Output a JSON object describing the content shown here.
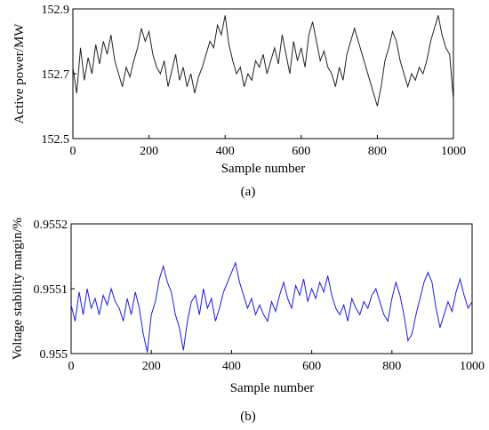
{
  "chart_data": [
    {
      "type": "line",
      "panel": "(a)",
      "title": "",
      "xlabel": "Sample number",
      "ylabel": "Active power/MW",
      "xlim": [
        0,
        1000
      ],
      "ylim": [
        152.5,
        152.9
      ],
      "xticks": [
        "0",
        "200",
        "400",
        "600",
        "800",
        "1000"
      ],
      "yticks": [
        "152.5",
        "152.7",
        "152.9"
      ],
      "grid": false,
      "color": "#222222",
      "x": [
        0,
        10,
        20,
        30,
        40,
        50,
        60,
        70,
        80,
        90,
        100,
        110,
        120,
        130,
        140,
        150,
        160,
        170,
        180,
        190,
        200,
        210,
        220,
        230,
        240,
        250,
        260,
        270,
        280,
        290,
        300,
        310,
        320,
        330,
        340,
        350,
        360,
        370,
        380,
        390,
        400,
        410,
        420,
        430,
        440,
        450,
        460,
        470,
        480,
        490,
        500,
        510,
        520,
        530,
        540,
        550,
        560,
        570,
        580,
        590,
        600,
        610,
        620,
        630,
        640,
        650,
        660,
        670,
        680,
        690,
        700,
        710,
        720,
        730,
        740,
        750,
        760,
        770,
        780,
        790,
        800,
        810,
        820,
        830,
        840,
        850,
        860,
        870,
        880,
        890,
        900,
        910,
        920,
        930,
        940,
        950,
        960,
        970,
        980,
        990,
        1000
      ],
      "y": [
        152.72,
        152.64,
        152.78,
        152.68,
        152.75,
        152.7,
        152.79,
        152.73,
        152.8,
        152.76,
        152.82,
        152.74,
        152.7,
        152.66,
        152.72,
        152.69,
        152.74,
        152.78,
        152.84,
        152.8,
        152.83,
        152.76,
        152.72,
        152.7,
        152.74,
        152.66,
        152.71,
        152.76,
        152.68,
        152.72,
        152.66,
        152.7,
        152.64,
        152.69,
        152.72,
        152.76,
        152.8,
        152.78,
        152.85,
        152.82,
        152.88,
        152.79,
        152.74,
        152.7,
        152.72,
        152.66,
        152.7,
        152.68,
        152.74,
        152.72,
        152.76,
        152.7,
        152.74,
        152.78,
        152.73,
        152.82,
        152.76,
        152.7,
        152.8,
        152.74,
        152.78,
        152.72,
        152.82,
        152.86,
        152.8,
        152.74,
        152.77,
        152.72,
        152.7,
        152.66,
        152.72,
        152.68,
        152.76,
        152.8,
        152.84,
        152.8,
        152.76,
        152.72,
        152.68,
        152.64,
        152.6,
        152.66,
        152.74,
        152.78,
        152.83,
        152.8,
        152.74,
        152.7,
        152.66,
        152.7,
        152.68,
        152.72,
        152.7,
        152.74,
        152.8,
        152.84,
        152.88,
        152.82,
        152.78,
        152.76,
        152.62
      ]
    },
    {
      "type": "line",
      "panel": "(b)",
      "title": "",
      "xlabel": "Sample number",
      "ylabel": "Voltage stability margin/%",
      "xlim": [
        0,
        1000
      ],
      "ylim": [
        0.955,
        0.9552
      ],
      "xticks": [
        "0",
        "200",
        "400",
        "600",
        "800",
        "1000"
      ],
      "yticks": [
        "0.955",
        "0.9551",
        "0.9552"
      ],
      "grid": false,
      "color": "#1a1aee",
      "x": [
        0,
        10,
        20,
        30,
        40,
        50,
        60,
        70,
        80,
        90,
        100,
        110,
        120,
        130,
        140,
        150,
        160,
        170,
        180,
        190,
        200,
        210,
        220,
        230,
        240,
        250,
        260,
        270,
        280,
        290,
        300,
        310,
        320,
        330,
        340,
        350,
        360,
        370,
        380,
        390,
        400,
        410,
        420,
        430,
        440,
        450,
        460,
        470,
        480,
        490,
        500,
        510,
        520,
        530,
        540,
        550,
        560,
        570,
        580,
        590,
        600,
        610,
        620,
        630,
        640,
        650,
        660,
        670,
        680,
        690,
        700,
        710,
        720,
        730,
        740,
        750,
        760,
        770,
        780,
        790,
        800,
        810,
        820,
        830,
        840,
        850,
        860,
        870,
        880,
        890,
        900,
        910,
        920,
        930,
        940,
        950,
        960,
        970,
        980,
        990,
        1000
      ],
      "y": [
        0.955075,
        0.95505,
        0.955095,
        0.95506,
        0.9551,
        0.95507,
        0.955085,
        0.95506,
        0.95509,
        0.955075,
        0.9551,
        0.95508,
        0.95507,
        0.95505,
        0.955085,
        0.95506,
        0.955095,
        0.95507,
        0.95503,
        0.955002,
        0.95506,
        0.95508,
        0.955115,
        0.955135,
        0.95511,
        0.955095,
        0.95506,
        0.95504,
        0.955005,
        0.95505,
        0.95508,
        0.95509,
        0.95506,
        0.9551,
        0.95507,
        0.955085,
        0.95505,
        0.95507,
        0.955095,
        0.95511,
        0.955125,
        0.95514,
        0.95511,
        0.95509,
        0.95507,
        0.955085,
        0.95506,
        0.955075,
        0.95506,
        0.95505,
        0.95508,
        0.955065,
        0.95509,
        0.95511,
        0.955085,
        0.95507,
        0.955105,
        0.95509,
        0.955115,
        0.95508,
        0.9551,
        0.955085,
        0.95511,
        0.955095,
        0.95512,
        0.95509,
        0.95507,
        0.95506,
        0.955075,
        0.95505,
        0.955085,
        0.95507,
        0.95506,
        0.95508,
        0.95507,
        0.95509,
        0.9551,
        0.95508,
        0.95506,
        0.95505,
        0.955085,
        0.95511,
        0.95509,
        0.95506,
        0.95502,
        0.95503,
        0.95506,
        0.955085,
        0.95511,
        0.955125,
        0.95511,
        0.95507,
        0.95504,
        0.95506,
        0.95508,
        0.955065,
        0.955095,
        0.955115,
        0.95509,
        0.95507,
        0.95508
      ]
    }
  ]
}
